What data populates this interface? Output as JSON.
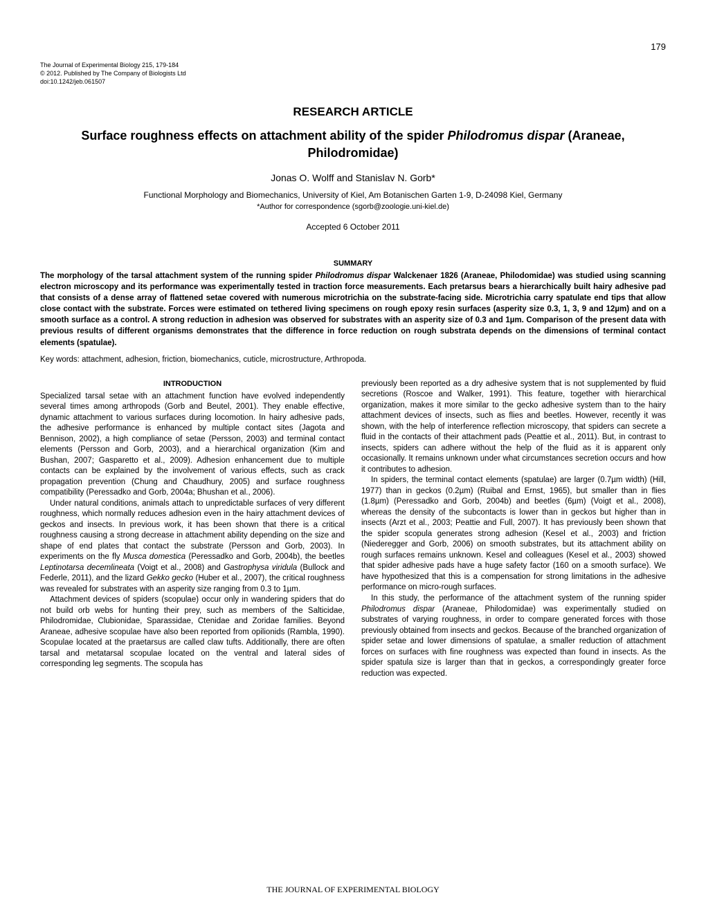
{
  "page_number": "179",
  "journal_info": {
    "line1": "The Journal of Experimental Biology 215, 179-184",
    "line2": "© 2012. Published by The Company of Biologists Ltd",
    "line3": "doi:10.1242/jeb.061507"
  },
  "article_type": "RESEARCH ARTICLE",
  "title_pre": "Surface roughness effects on attachment ability of the spider ",
  "title_species": "Philodromus dispar",
  "title_post": " (Araneae, Philodromidae)",
  "authors": "Jonas O. Wolff and Stanislav N. Gorb*",
  "affiliation": "Functional Morphology and Biomechanics, University of Kiel, Am Botanischen Garten 1-9, D-24098 Kiel, Germany",
  "correspondence": "*Author for correspondence (sgorb@zoologie.uni-kiel.de)",
  "accepted": "Accepted 6 October 2011",
  "summary_heading": "SUMMARY",
  "summary_pre": "The morphology of the tarsal attachment system of the running spider ",
  "summary_species": "Philodromus dispar",
  "summary_post": " Walckenaer 1826 (Araneae, Philodomidae) was studied using scanning electron microscopy and its performance was experimentally tested in traction force measurements. Each pretarsus bears a hierarchically built hairy adhesive pad that consists of a dense array of flattened setae covered with numerous microtrichia on the substrate-facing side. Microtrichia carry spatulate end tips that allow close contact with the substrate. Forces were estimated on tethered living specimens on rough epoxy resin surfaces (asperity size 0.3, 1, 3, 9 and 12µm) and on a smooth surface as a control. A strong reduction in adhesion was observed for substrates with an asperity size of 0.3 and 1µm. Comparison of the present data with previous results of different organisms demonstrates that the difference in force reduction on rough substrata depends on the dimensions of terminal contact elements (spatulae).",
  "keywords": "Key words: attachment, adhesion, friction, biomechanics, cuticle, microstructure, Arthropoda.",
  "intro_heading": "INTRODUCTION",
  "col1": {
    "p1": "Specialized tarsal setae with an attachment function have evolved independently several times among arthropods (Gorb and Beutel, 2001). They enable effective, dynamic attachment to various surfaces during locomotion. In hairy adhesive pads, the adhesive performance is enhanced by multiple contact sites (Jagota and Bennison, 2002), a high compliance of setae (Persson, 2003) and terminal contact elements (Persson and Gorb, 2003), and a hierarchical organization (Kim and Bushan, 2007; Gasparetto et al., 2009). Adhesion enhancement due to multiple contacts can be explained by the involvement of various effects, such as crack propagation prevention (Chung and Chaudhury, 2005) and surface roughness compatibility (Peressadko and Gorb, 2004a; Bhushan et al., 2006).",
    "p2a": "Under natural conditions, animals attach to unpredictable surfaces of very different roughness, which normally reduces adhesion even in the hairy attachment devices of geckos and insects. In previous work, it has been shown that there is a critical roughness causing a strong decrease in attachment ability depending on the size and shape of end plates that contact the substrate (Persson and Gorb, 2003). In experiments on the fly ",
    "p2_s1": "Musca domestica",
    "p2b": " (Peressadko and Gorb, 2004b), the beetles ",
    "p2_s2": "Leptinotarsa decemlineata",
    "p2c": " (Voigt et al., 2008) and ",
    "p2_s3": "Gastrophysa viridula",
    "p2d": " (Bullock and Federle, 2011), and the lizard ",
    "p2_s4": "Gekko gecko",
    "p2e": " (Huber et al., 2007), the critical roughness was revealed for substrates with an asperity size ranging from 0.3 to 1µm.",
    "p3": "Attachment devices of spiders (scopulae) occur only in wandering spiders that do not build orb webs for hunting their prey, such as members of the Salticidae, Philodromidae, Clubionidae, Sparassidae, Ctenidae and Zoridae families. Beyond Araneae, adhesive scopulae have also been reported from opilionids (Rambla, 1990). Scopulae located at the praetarsus are called claw tufts. Additionally, there are often tarsal and metatarsal scopulae located on the ventral and lateral sides of corresponding leg segments. The scopula has"
  },
  "col2": {
    "p1": "previously been reported as a dry adhesive system that is not supplemented by fluid secretions (Roscoe and Walker, 1991). This feature, together with hierarchical organization, makes it more similar to the gecko adhesive system than to the hairy attachment devices of insects, such as flies and beetles. However, recently it was shown, with the help of interference reflection microscopy, that spiders can secrete a fluid in the contacts of their attachment pads (Peattie et al., 2011). But, in contrast to insects, spiders can adhere without the help of the fluid as it is apparent only occasionally. It remains unknown under what circumstances secretion occurs and how it contributes to adhesion.",
    "p2": "In spiders, the terminal contact elements (spatulae) are larger (0.7µm width) (Hill, 1977) than in geckos (0.2µm) (Ruibal and Ernst, 1965), but smaller than in flies (1.8µm) (Peressadko and Gorb, 2004b) and beetles (6µm) (Voigt et al., 2008), whereas the density of the subcontacts is lower than in geckos but higher than in insects (Arzt et al., 2003; Peattie and Full, 2007). It has previously been shown that the spider scopula generates strong adhesion (Kesel et al., 2003) and friction (Niederegger and Gorb, 2006) on smooth substrates, but its attachment ability on rough surfaces remains unknown. Kesel and colleagues (Kesel et al., 2003) showed that spider adhesive pads have a huge safety factor (160 on a smooth surface). We have hypothesized that this is a compensation for strong limitations in the adhesive performance on micro-rough surfaces.",
    "p3a": "In this study, the performance of the attachment system of the running spider ",
    "p3_s1": "Philodromus dispar",
    "p3b": " (Araneae, Philodomidae) was experimentally studied on substrates of varying roughness, in order to compare generated forces with those previously obtained from insects and geckos. Because of the branched organization of spider setae and lower dimensions of spatulae, a smaller reduction of attachment forces on surfaces with fine roughness was expected than found in insects. As the spider spatula size is larger than that in geckos, a correspondingly greater force reduction was expected."
  },
  "footer": "THE JOURNAL OF EXPERIMENTAL BIOLOGY"
}
